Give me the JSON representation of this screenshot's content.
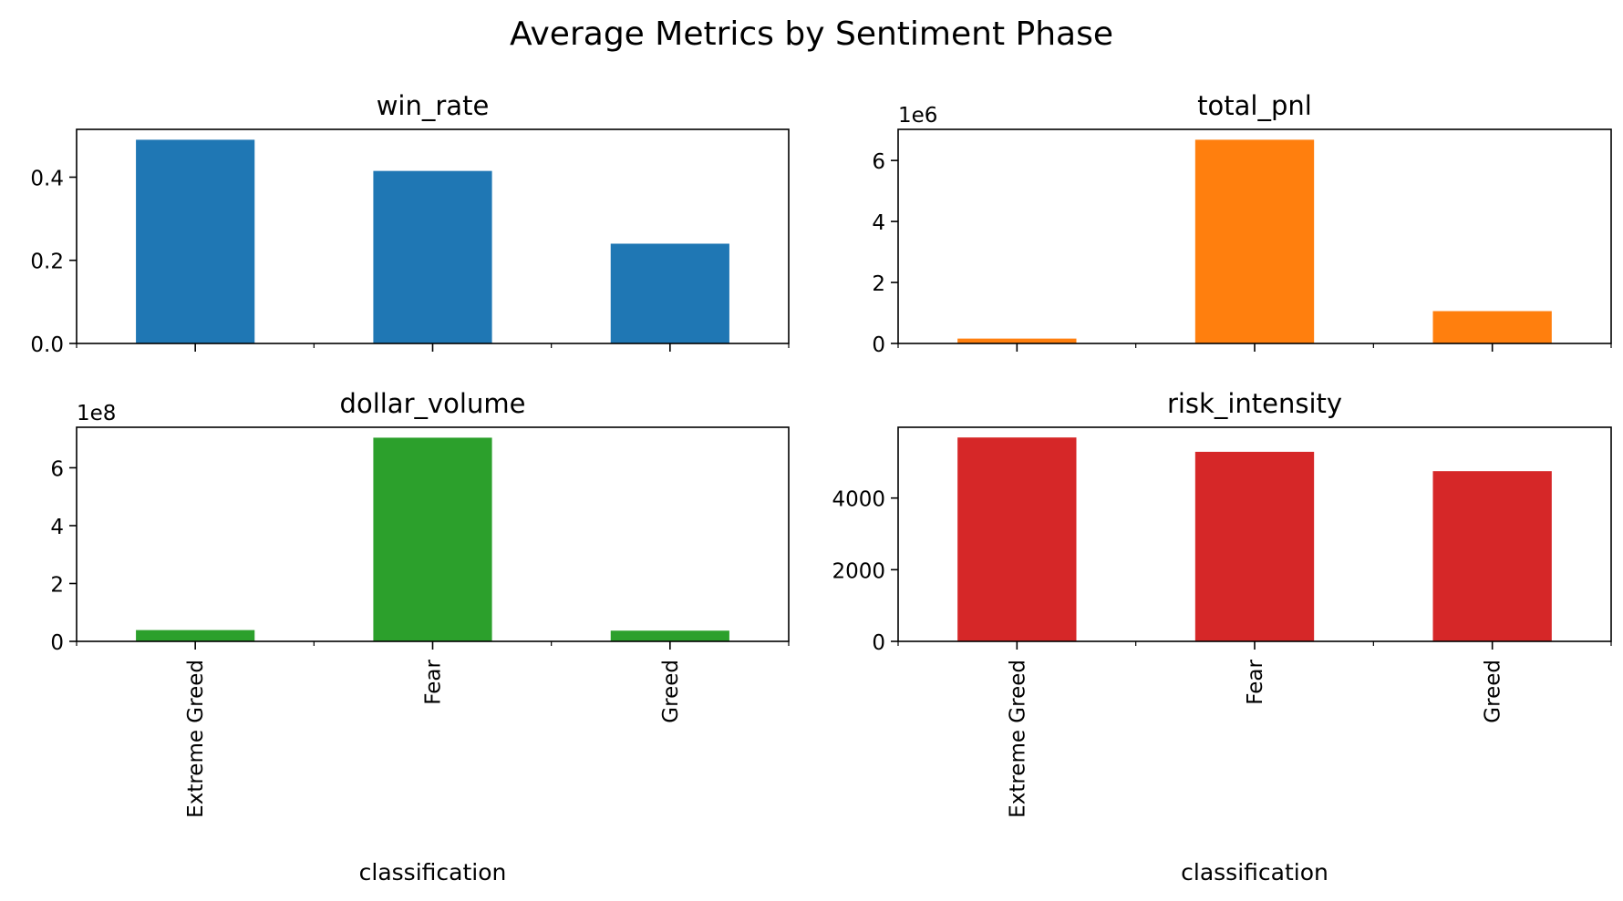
{
  "figure": {
    "title": "Average Metrics by Sentiment Phase"
  },
  "chart_data": [
    {
      "type": "bar",
      "title": "win_rate",
      "categories": [
        "Extreme Greed",
        "Fear",
        "Greed"
      ],
      "values": [
        0.49,
        0.415,
        0.24
      ],
      "ylim": [
        0,
        0.515
      ],
      "yticks": [
        0.0,
        0.2,
        0.4
      ],
      "ytick_labels": [
        "0.0",
        "0.2",
        "0.4"
      ],
      "offset_label": "",
      "color": "#1f77b4",
      "xlabel": "",
      "show_category_labels": false,
      "grid": false
    },
    {
      "type": "bar",
      "title": "total_pnl",
      "categories": [
        "Extreme Greed",
        "Fear",
        "Greed"
      ],
      "values": [
        0.16,
        6.68,
        1.06
      ],
      "ylim": [
        0,
        7.02
      ],
      "yticks": [
        0,
        2,
        4,
        6
      ],
      "ytick_labels": [
        "0",
        "2",
        "4",
        "6"
      ],
      "offset_label": "1e6",
      "color": "#ff7f0e",
      "xlabel": "",
      "show_category_labels": false,
      "grid": false
    },
    {
      "type": "bar",
      "title": "dollar_volume",
      "categories": [
        "Extreme Greed",
        "Fear",
        "Greed"
      ],
      "values": [
        0.39,
        7.04,
        0.37
      ],
      "ylim": [
        0,
        7.4
      ],
      "yticks": [
        0,
        2,
        4,
        6
      ],
      "ytick_labels": [
        "0",
        "2",
        "4",
        "6"
      ],
      "offset_label": "1e8",
      "color": "#2ca02c",
      "xlabel": "classification",
      "show_category_labels": true,
      "grid": false
    },
    {
      "type": "bar",
      "title": "risk_intensity",
      "categories": [
        "Extreme Greed",
        "Fear",
        "Greed"
      ],
      "values": [
        5690,
        5290,
        4750
      ],
      "ylim": [
        0,
        5975
      ],
      "yticks": [
        0,
        2000,
        4000
      ],
      "ytick_labels": [
        "0",
        "2000",
        "4000"
      ],
      "offset_label": "",
      "color": "#d62728",
      "xlabel": "classification",
      "show_category_labels": true,
      "grid": false
    }
  ]
}
